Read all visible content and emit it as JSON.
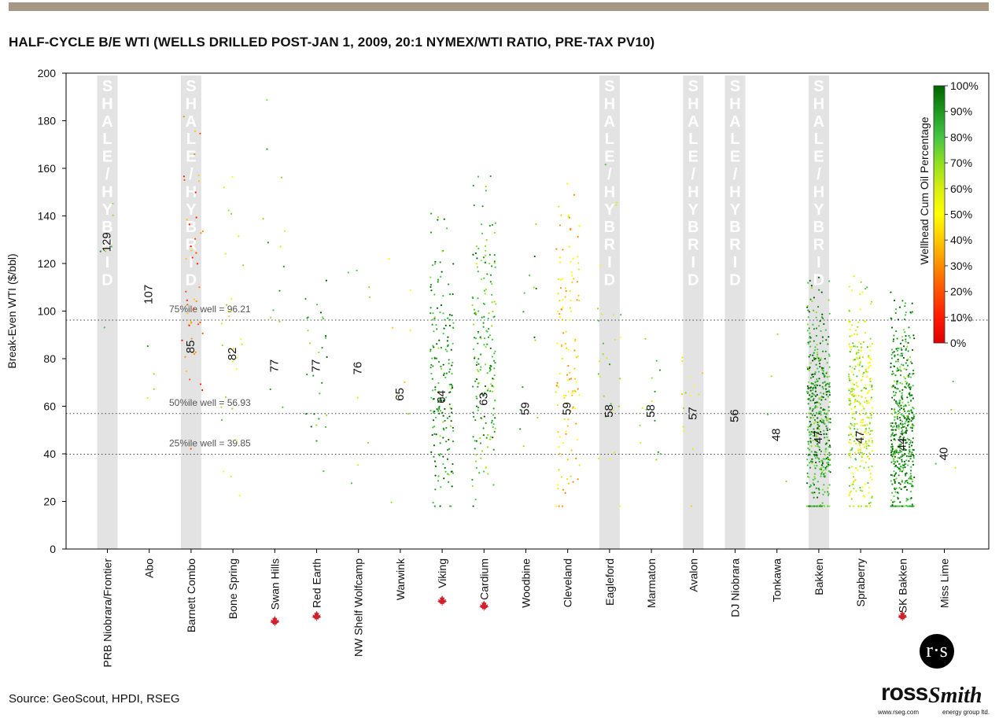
{
  "title": "HALF-CYCLE B/E WTI (WELLS DRILLED POST-JAN 1, 2009, 20:1 NYMEX/WTI RATIO, PRE-TAX PV10)",
  "source": "Source: GeoScout, HPDI, RSEG",
  "logo": {
    "badge": "r·s",
    "ross": "ross",
    "smith": "Smith",
    "url": "www.rseg.com",
    "group": "energy group ltd."
  },
  "chart_data": {
    "type": "scatter",
    "title": "HALF-CYCLE B/E WTI (WELLS DRILLED POST-JAN 1, 2009, 20:1 NYMEX/WTI RATIO, PRE-TAX PV10)",
    "ylabel": "Break-Even WTI ($/bbl)",
    "xlabel": "",
    "ylim": [
      0,
      200
    ],
    "yticks": [
      0,
      20,
      40,
      60,
      80,
      100,
      120,
      140,
      160,
      180,
      200
    ],
    "grid": false,
    "shale_label": "SHALE/HYBRID",
    "canada_marker_color": "#d0202a",
    "colorbar": {
      "label": "Wellhead Cum Oil Percentage",
      "ticks": [
        "100%",
        "90%",
        "80%",
        "70%",
        "60%",
        "50%",
        "40%",
        "30%",
        "20%",
        "10%",
        "0%"
      ],
      "colors": [
        "#006400",
        "#1f9a1f",
        "#44c544",
        "#8fe020",
        "#d8ee10",
        "#ffff00",
        "#ffc800",
        "#ff8c00",
        "#ff5000",
        "#ff1a00",
        "#e00000"
      ],
      "legend_placement": "top-right"
    },
    "reference_lines": [
      {
        "label": "75%ile well = 96.21",
        "value": 96.21
      },
      {
        "label": "50%ile well = 56.93",
        "value": 56.93
      },
      {
        "label": "25%ile well = 39.85",
        "value": 39.85
      }
    ],
    "categories": [
      {
        "name": "PRB Niobrara/Frontier",
        "median": 129,
        "shale": true,
        "canada": false,
        "count": 6,
        "center": 120,
        "spread": 70,
        "oil": 0.75
      },
      {
        "name": "Abo",
        "median": 107,
        "shale": false,
        "canada": false,
        "count": 4,
        "center": 70,
        "spread": 20,
        "oil": 0.8
      },
      {
        "name": "Barnett Combo",
        "median": 85,
        "shale": true,
        "canada": false,
        "count": 48,
        "center": 110,
        "spread": 60,
        "oil": 0.25
      },
      {
        "name": "Bone Spring",
        "median": 82,
        "shale": false,
        "canada": false,
        "count": 28,
        "center": 90,
        "spread": 60,
        "oil": 0.6
      },
      {
        "name": "Swan Hills",
        "median": 77,
        "shale": false,
        "canada": true,
        "count": 14,
        "center": 100,
        "spread": 70,
        "oil": 0.8
      },
      {
        "name": "Red Earth",
        "median": 77,
        "shale": false,
        "canada": true,
        "count": 28,
        "center": 75,
        "spread": 35,
        "oil": 0.88
      },
      {
        "name": "NW Shelf Wolfcamp",
        "median": 76,
        "shale": false,
        "canada": false,
        "count": 8,
        "center": 90,
        "spread": 45,
        "oil": 0.75
      },
      {
        "name": "Warwink",
        "median": 65,
        "shale": false,
        "canada": false,
        "count": 8,
        "center": 80,
        "spread": 55,
        "oil": 0.6
      },
      {
        "name": "Viking",
        "median": 64,
        "shale": false,
        "canada": true,
        "count": 190,
        "center": 70,
        "spread": 50,
        "oil": 0.9
      },
      {
        "name": "Cardium",
        "median": 63,
        "shale": false,
        "canada": true,
        "count": 190,
        "center": 75,
        "spread": 55,
        "oil": 0.82
      },
      {
        "name": "Woodbine",
        "median": 59,
        "shale": false,
        "canada": false,
        "count": 14,
        "center": 90,
        "spread": 60,
        "oil": 0.85
      },
      {
        "name": "Cleveland",
        "median": 59,
        "shale": false,
        "canada": false,
        "count": 130,
        "center": 80,
        "spread": 55,
        "oil": 0.45
      },
      {
        "name": "Eagleford",
        "median": 58,
        "shale": true,
        "canada": false,
        "count": 28,
        "center": 80,
        "spread": 55,
        "oil": 0.68
      },
      {
        "name": "Marmaton",
        "median": 58,
        "shale": false,
        "canada": false,
        "count": 14,
        "center": 70,
        "spread": 40,
        "oil": 0.75
      },
      {
        "name": "Avalon",
        "median": 57,
        "shale": true,
        "canada": false,
        "count": 14,
        "center": 65,
        "spread": 35,
        "oil": 0.55
      },
      {
        "name": "DJ Niobrara",
        "median": 56,
        "shale": true,
        "canada": false,
        "count": 0,
        "center": 60,
        "spread": 10,
        "oil": 0.7
      },
      {
        "name": "Tonkawa",
        "median": 48,
        "shale": false,
        "canada": false,
        "count": 4,
        "center": 55,
        "spread": 30,
        "oil": 0.75
      },
      {
        "name": "Bakken",
        "median": 47,
        "shale": true,
        "canada": false,
        "count": 450,
        "center": 55,
        "spread": 40,
        "oil": 0.88
      },
      {
        "name": "Spraberry",
        "median": 47,
        "shale": false,
        "canada": false,
        "count": 330,
        "center": 55,
        "spread": 40,
        "oil": 0.62
      },
      {
        "name": "SK Bakken",
        "median": 44,
        "shale": false,
        "canada": true,
        "count": 520,
        "center": 50,
        "spread": 38,
        "oil": 0.9
      },
      {
        "name": "Miss Lime",
        "median": 40,
        "shale": false,
        "canada": false,
        "count": 4,
        "center": 40,
        "spread": 20,
        "oil": 0.75
      }
    ]
  }
}
